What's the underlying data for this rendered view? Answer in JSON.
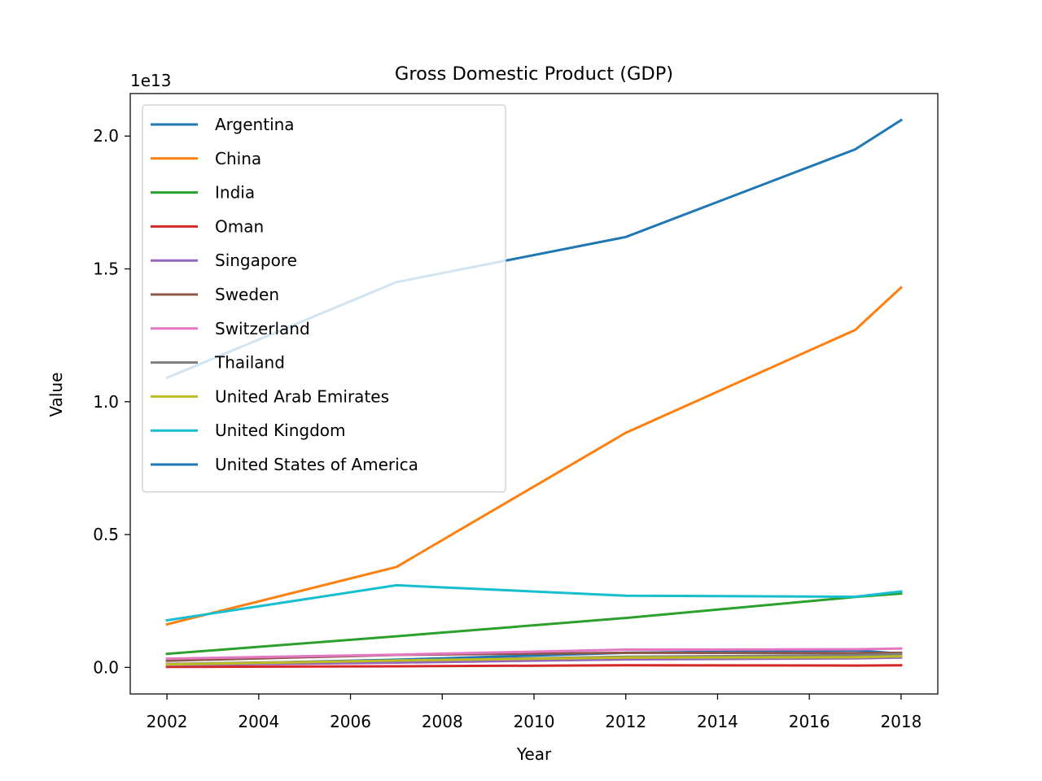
{
  "chart_data": {
    "type": "line",
    "title": "Gross Domestic Product (GDP)",
    "xlabel": "Year",
    "ylabel": "Value",
    "y_offset_label": "1e13",
    "xlim": [
      2001.2,
      2018.8
    ],
    "ylim": [
      -0.1,
      2.16
    ],
    "y_scale_factor": 10000000000000.0,
    "x_ticks": [
      2002,
      2004,
      2006,
      2008,
      2010,
      2012,
      2014,
      2016,
      2018
    ],
    "x_tick_labels": [
      "2002",
      "2004",
      "2006",
      "2008",
      "2010",
      "2012",
      "2014",
      "2016",
      "2018"
    ],
    "y_ticks": [
      0.0,
      0.5,
      1.0,
      1.5,
      2.0
    ],
    "y_tick_labels": [
      "0.0",
      "0.5",
      "1.0",
      "1.5",
      "2.0"
    ],
    "legend_position": "upper-left",
    "grid": false,
    "x": [
      2002,
      2007,
      2012,
      2017,
      2018
    ],
    "series": [
      {
        "name": "Argentina",
        "color": "#1f77b4",
        "values": [
          0.01,
          0.029,
          0.055,
          0.064,
          0.052
        ]
      },
      {
        "name": "China",
        "color": "#ff7f0e",
        "values": [
          0.162,
          0.378,
          0.883,
          1.27,
          1.43
        ]
      },
      {
        "name": "India",
        "color": "#2ca02c",
        "values": [
          0.051,
          0.117,
          0.186,
          0.265,
          0.278
        ]
      },
      {
        "name": "Oman",
        "color": "#d62728",
        "values": [
          0.002,
          0.004,
          0.008,
          0.007,
          0.008
        ]
      },
      {
        "name": "Singapore",
        "color": "#9467bd",
        "values": [
          0.009,
          0.018,
          0.03,
          0.034,
          0.037
        ]
      },
      {
        "name": "Sweden",
        "color": "#8c564b",
        "values": [
          0.025,
          0.047,
          0.055,
          0.054,
          0.055
        ]
      },
      {
        "name": "Switzerland",
        "color": "#e377c2",
        "values": [
          0.033,
          0.048,
          0.067,
          0.068,
          0.071
        ]
      },
      {
        "name": "Thailand",
        "color": "#7f7f7f",
        "values": [
          0.013,
          0.026,
          0.04,
          0.046,
          0.05
        ]
      },
      {
        "name": "United Arab Emirates",
        "color": "#bcbd22",
        "values": [
          0.011,
          0.026,
          0.037,
          0.038,
          0.042
        ]
      },
      {
        "name": "United Kingdom",
        "color": "#17becf",
        "values": [
          0.177,
          0.309,
          0.27,
          0.266,
          0.286
        ]
      },
      {
        "name": "United States of America",
        "color": "#1f77b4",
        "values": [
          1.09,
          1.45,
          1.62,
          1.95,
          2.06
        ]
      }
    ]
  }
}
